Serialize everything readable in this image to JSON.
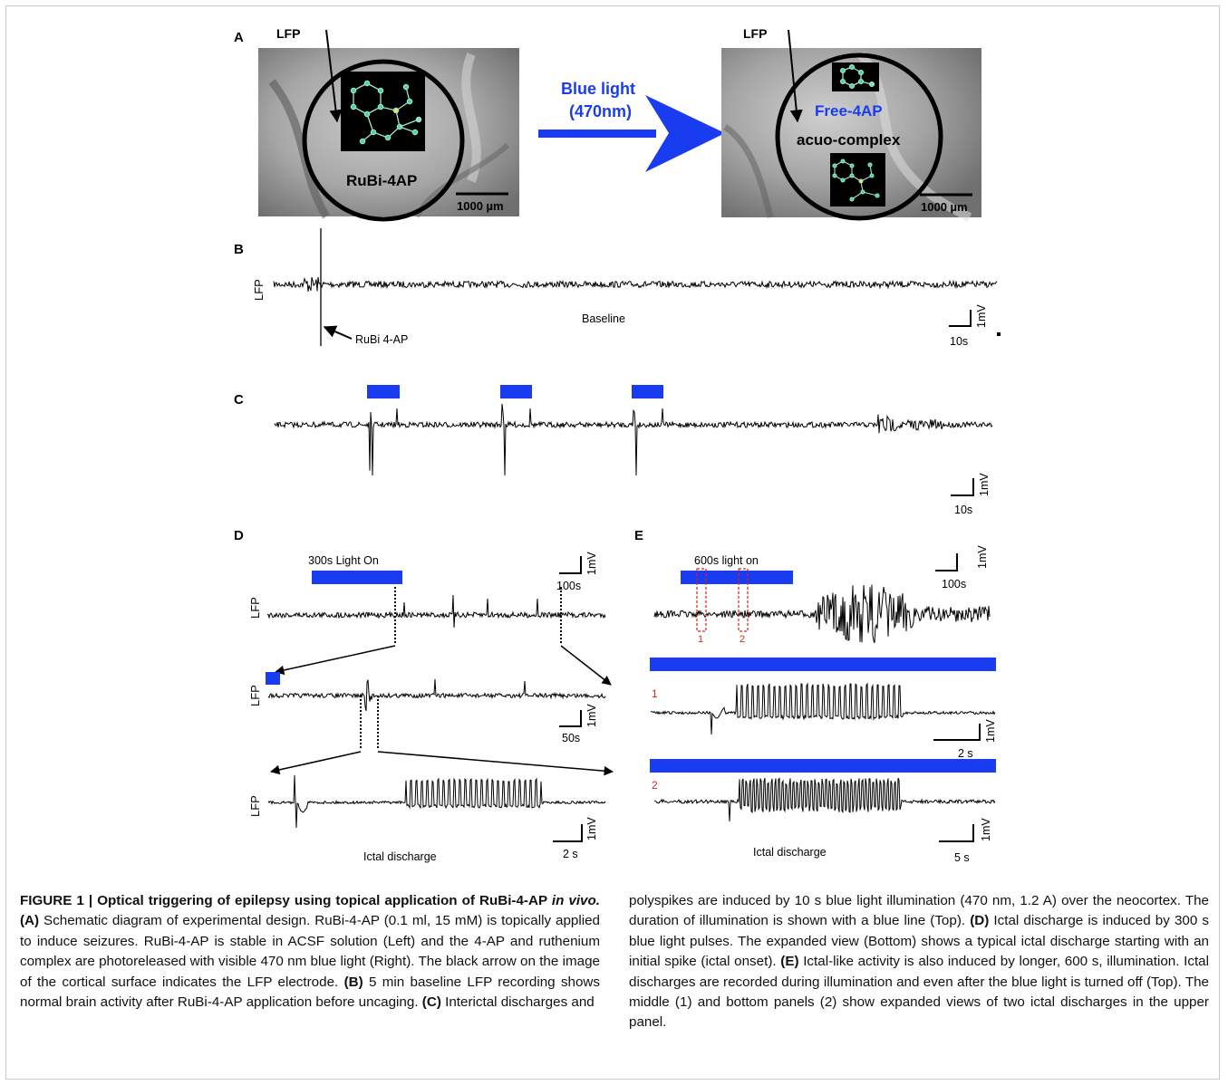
{
  "panels": {
    "A": {
      "label": "A",
      "lfp_left": "LFP",
      "lfp_right": "LFP",
      "left_compound": "RuBi-4AP",
      "right_free": "Free-4AP",
      "right_complex": "acuo-complex",
      "arrow_text_line1": "Blue light",
      "arrow_text_line2": "(470nm)",
      "scale_left": "1000 µm",
      "scale_right": "1000 µm"
    },
    "B": {
      "label": "B",
      "ylabel": "LFP",
      "annotation": "RuBi 4-AP",
      "caption": "Baseline",
      "scale_time": "10s",
      "scale_volt": "1mV"
    },
    "C": {
      "label": "C",
      "scale_time": "10s",
      "scale_volt": "1mV"
    },
    "D": {
      "label": "D",
      "light_label": "300s Light On",
      "ylabel1": "LFP",
      "ylabel2": "LFP",
      "ylabel3": "LFP",
      "scale1_time": "100s",
      "scale1_volt": "1mV",
      "scale2_time": "50s",
      "scale2_volt": "1mV",
      "scale3_time": "2 s",
      "scale3_volt": "1mV",
      "caption": "Ictal discharge"
    },
    "E": {
      "label": "E",
      "light_label": "600s light on",
      "mark1": "1",
      "mark2": "2",
      "sub1": "1",
      "sub2": "2",
      "scale1_time": "100s",
      "scale1_volt": "1mV",
      "scale2_time": "2 s",
      "scale2_volt": "1mV",
      "scale3_time": "5 s",
      "scale3_volt": "1mV",
      "caption": "Ictal discharge"
    }
  },
  "colors": {
    "blue_light": "#1a3cf0",
    "marker_red": "#e02020",
    "molecule_node": "#3fd3a8",
    "photo_gray": "#8f8f8f"
  },
  "caption": {
    "title": "FIGURE 1 | Optical triggering of epilepsy using topical application of RuBi-4-AP ",
    "title_italic": "in vivo.",
    "left_p1": " Schematic diagram of experimental design. RuBi-4-AP (0.1 ml, 15 mM) is topically applied to induce seizures. RuBi-4-AP is stable in ACSF solution (Left) and the 4-AP and ruthenium complex are photoreleased with visible 470 nm blue light (Right). The black arrow on the image of the cortical surface indicates the LFP electrode.",
    "left_p2": " 5 min baseline LFP recording shows normal brain activity after RuBi-4-AP application before uncaging.",
    "left_p3": " Interictal discharges and",
    "ref_A": "(A)",
    "ref_B": "(B)",
    "ref_C": "(C)",
    "ref_D": "(D)",
    "ref_E": "(E)",
    "right_p1": "polyspikes are induced by 10 s blue light illumination (470 nm, 1.2 A) over the neocortex. The duration of illumination is shown with a blue line (Top). ",
    "right_p2": " Ictal discharge is induced by 300 s blue light pulses. The expanded view (Bottom) shows a typical ictal discharge starting with an initial spike (ictal onset). ",
    "right_p3": " Ictal-like activity is also induced by longer, 600 s, illumination. Ictal discharges are recorded during illumination and even after the blue light is turned off (Top). The middle (1) and bottom panels (2) show expanded views of two ictal discharges in the upper panel."
  }
}
